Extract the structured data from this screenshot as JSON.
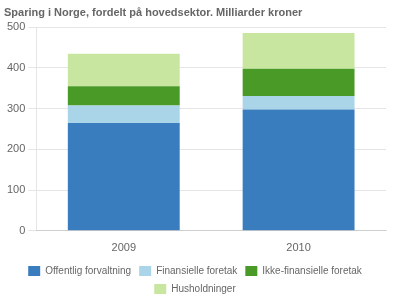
{
  "chart_data": {
    "type": "bar",
    "title": "Sparing i Norge, fordelt på hovedsektor. Milliarder kroner",
    "categories": [
      "2009",
      "2010"
    ],
    "series": [
      {
        "name": "Offentlig forvaltning",
        "color": "#3a7dbf",
        "values": [
          265,
          298
        ]
      },
      {
        "name": "Finansielle foretak",
        "color": "#aad4e8",
        "values": [
          43,
          33
        ]
      },
      {
        "name": "Ikke-finansielle foretak",
        "color": "#4a9a28",
        "values": [
          47,
          67
        ]
      },
      {
        "name": "Husholdninger",
        "color": "#c8e6a0",
        "values": [
          80,
          88
        ]
      }
    ],
    "stacked": true,
    "ylim": [
      0,
      500
    ],
    "yticks": [
      0,
      100,
      200,
      300,
      400,
      500
    ],
    "grid": true,
    "legend": "bottom"
  }
}
